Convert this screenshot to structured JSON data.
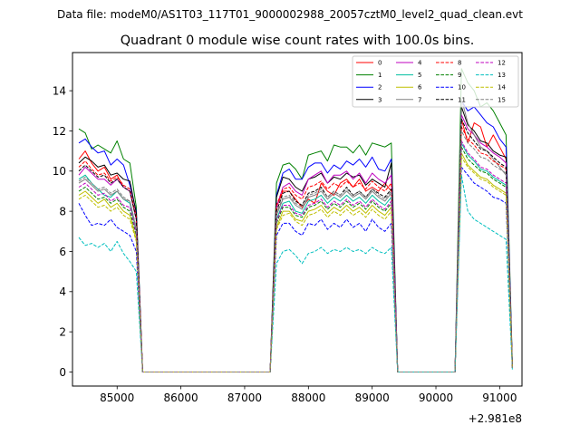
{
  "suptitle": "Data file: modeM0/AS1T03_117T01_9000002988_20057cztM0_level2_quad_clean.evt",
  "chart_data": {
    "type": "line",
    "title": "Quadrant 0 module wise count rates with 100.0s bins.",
    "xlabel": "",
    "ylabel": "",
    "x_offset_label": "+2.981e8",
    "xlim": [
      84300,
      91350
    ],
    "ylim": [
      -0.7,
      15.9
    ],
    "xticks": [
      85000,
      86000,
      87000,
      88000,
      89000,
      90000,
      91000
    ],
    "xtick_labels": [
      "85000",
      "86000",
      "87000",
      "88000",
      "89000",
      "90000",
      "91000"
    ],
    "yticks": [
      0,
      2,
      4,
      6,
      8,
      10,
      12,
      14
    ],
    "ytick_labels": [
      "0",
      "2",
      "4",
      "6",
      "8",
      "10",
      "12",
      "14"
    ],
    "legend_position": "top-right",
    "legend_columns": 4,
    "x": [
      84400,
      84500,
      84600,
      84700,
      84800,
      84900,
      85000,
      85100,
      85200,
      85300,
      85400,
      85500,
      85600,
      85700,
      85800,
      85900,
      86000,
      86100,
      86200,
      86300,
      86400,
      86500,
      86600,
      86700,
      86800,
      86900,
      87000,
      87100,
      87200,
      87300,
      87400,
      87500,
      87600,
      87700,
      87800,
      87900,
      88000,
      88100,
      88200,
      88300,
      88400,
      88500,
      88600,
      88700,
      88800,
      88900,
      89000,
      89100,
      89200,
      89300,
      89400,
      89500,
      89600,
      89700,
      89800,
      89900,
      90000,
      90100,
      90200,
      90300,
      90400,
      90500,
      90600,
      90700,
      90800,
      90900,
      91000,
      91100,
      91200
    ],
    "series": [
      {
        "name": "0",
        "color": "#ff0000",
        "dash": "solid",
        "values": [
          10.6,
          11.0,
          10.4,
          10.0,
          10.2,
          9.6,
          9.8,
          9.2,
          9.0,
          7.6,
          0,
          0,
          0,
          0,
          0,
          0,
          0,
          0,
          0,
          0,
          0,
          0,
          0,
          0,
          0,
          0,
          0,
          0,
          0,
          0,
          0,
          8.2,
          9.0,
          9.0,
          8.6,
          8.2,
          8.6,
          8.4,
          9.4,
          9.0,
          8.8,
          9.4,
          9.6,
          9.2,
          9.6,
          9.0,
          9.2,
          9.0,
          9.4,
          9.0,
          0,
          0,
          0,
          0,
          0,
          0,
          0,
          0,
          0,
          0,
          12.6,
          11.4,
          12.4,
          12.2,
          11.2,
          11.8,
          11.2,
          10.6,
          0.2
        ]
      },
      {
        "name": "1",
        "color": "#008000",
        "dash": "solid",
        "values": [
          12.1,
          11.9,
          11.1,
          11.3,
          11.1,
          10.9,
          11.5,
          10.6,
          10.4,
          8.2,
          0,
          0,
          0,
          0,
          0,
          0,
          0,
          0,
          0,
          0,
          0,
          0,
          0,
          0,
          0,
          0,
          0,
          0,
          0,
          0,
          0,
          9.4,
          10.3,
          10.4,
          10.1,
          9.6,
          10.8,
          10.9,
          11.0,
          10.5,
          11.3,
          11.2,
          11.2,
          10.9,
          11.3,
          10.8,
          11.4,
          11.3,
          11.2,
          11.4,
          0,
          0,
          0,
          0,
          0,
          0,
          0,
          0,
          0,
          0,
          15.1,
          14.4,
          14.0,
          13.2,
          13.4,
          13.0,
          12.4,
          11.8,
          0.4
        ]
      },
      {
        "name": "2",
        "color": "#0000ff",
        "dash": "solid",
        "values": [
          11.4,
          11.6,
          11.2,
          10.9,
          11.0,
          10.3,
          10.6,
          10.3,
          9.3,
          8.0,
          0,
          0,
          0,
          0,
          0,
          0,
          0,
          0,
          0,
          0,
          0,
          0,
          0,
          0,
          0,
          0,
          0,
          0,
          0,
          0,
          0,
          8.8,
          9.9,
          10.1,
          9.6,
          9.6,
          10.2,
          10.4,
          10.4,
          9.9,
          10.3,
          10.1,
          10.5,
          10.3,
          10.6,
          10.2,
          10.7,
          10.1,
          10.0,
          10.6,
          0,
          0,
          0,
          0,
          0,
          0,
          0,
          0,
          0,
          0,
          13.5,
          13.0,
          13.2,
          12.8,
          12.4,
          12.2,
          11.6,
          11.2,
          0.3
        ]
      },
      {
        "name": "3",
        "color": "#000000",
        "dash": "solid",
        "values": [
          10.4,
          10.7,
          10.5,
          10.2,
          10.3,
          9.8,
          9.9,
          9.6,
          9.5,
          7.9,
          0,
          0,
          0,
          0,
          0,
          0,
          0,
          0,
          0,
          0,
          0,
          0,
          0,
          0,
          0,
          0,
          0,
          0,
          0,
          0,
          0,
          8.7,
          9.7,
          9.6,
          9.2,
          9.0,
          9.6,
          9.7,
          9.9,
          9.4,
          9.7,
          9.6,
          9.9,
          9.7,
          9.8,
          9.3,
          9.6,
          9.4,
          9.2,
          10.4,
          0,
          0,
          0,
          0,
          0,
          0,
          0,
          0,
          0,
          0,
          13.2,
          12.3,
          12.0,
          11.5,
          11.4,
          11.0,
          10.8,
          10.7,
          0.2
        ]
      },
      {
        "name": "4",
        "color": "#bf00bf",
        "dash": "solid",
        "values": [
          9.8,
          10.2,
          9.9,
          9.6,
          9.6,
          9.3,
          9.6,
          9.2,
          9.0,
          7.6,
          0,
          0,
          0,
          0,
          0,
          0,
          0,
          0,
          0,
          0,
          0,
          0,
          0,
          0,
          0,
          0,
          0,
          0,
          0,
          0,
          0,
          8.2,
          9.2,
          9.4,
          9.0,
          8.8,
          9.6,
          9.8,
          10.0,
          9.4,
          9.8,
          9.8,
          10.0,
          9.6,
          9.9,
          9.4,
          9.9,
          9.6,
          9.4,
          9.8,
          0,
          0,
          0,
          0,
          0,
          0,
          0,
          0,
          0,
          0,
          12.8,
          12.1,
          11.8,
          11.4,
          11.2,
          10.9,
          10.7,
          10.4,
          0.2
        ]
      },
      {
        "name": "5",
        "color": "#00bfa0",
        "dash": "solid",
        "values": [
          9.6,
          9.8,
          9.4,
          9.1,
          8.8,
          8.7,
          9.0,
          8.6,
          8.4,
          7.0,
          0,
          0,
          0,
          0,
          0,
          0,
          0,
          0,
          0,
          0,
          0,
          0,
          0,
          0,
          0,
          0,
          0,
          0,
          0,
          0,
          0,
          7.6,
          8.4,
          8.5,
          8.0,
          7.9,
          8.5,
          8.6,
          8.8,
          8.4,
          8.7,
          8.5,
          8.8,
          8.5,
          8.7,
          8.4,
          8.8,
          8.5,
          8.3,
          8.7,
          0,
          0,
          0,
          0,
          0,
          0,
          0,
          0,
          0,
          0,
          11.4,
          10.8,
          10.5,
          10.1,
          10.0,
          9.7,
          9.5,
          9.3,
          0.2
        ]
      },
      {
        "name": "6",
        "color": "#bfbf00",
        "dash": "solid",
        "values": [
          8.8,
          9.0,
          8.7,
          8.4,
          8.6,
          8.2,
          8.4,
          8.0,
          7.8,
          6.6,
          0,
          0,
          0,
          0,
          0,
          0,
          0,
          0,
          0,
          0,
          0,
          0,
          0,
          0,
          0,
          0,
          0,
          0,
          0,
          0,
          0,
          7.2,
          8.0,
          8.0,
          7.6,
          7.5,
          8.0,
          8.1,
          8.3,
          7.9,
          8.2,
          8.0,
          8.3,
          8.0,
          8.2,
          7.9,
          8.3,
          8.0,
          7.8,
          8.2,
          0,
          0,
          0,
          0,
          0,
          0,
          0,
          0,
          0,
          0,
          10.9,
          10.3,
          10.0,
          9.7,
          9.6,
          9.3,
          9.1,
          8.9,
          0.2
        ]
      },
      {
        "name": "7",
        "color": "#808080",
        "dash": "solid",
        "values": [
          9.4,
          9.6,
          9.3,
          9.0,
          9.1,
          8.8,
          9.0,
          8.6,
          8.5,
          7.1,
          0,
          0,
          0,
          0,
          0,
          0,
          0,
          0,
          0,
          0,
          0,
          0,
          0,
          0,
          0,
          0,
          0,
          0,
          0,
          0,
          0,
          7.8,
          8.6,
          8.7,
          8.3,
          8.1,
          8.7,
          8.8,
          9.0,
          8.6,
          8.9,
          8.7,
          9.0,
          8.7,
          8.9,
          8.6,
          9.0,
          8.7,
          8.5,
          8.9,
          0,
          0,
          0,
          0,
          0,
          0,
          0,
          0,
          0,
          0,
          13.6,
          12.4,
          11.8,
          11.2,
          11.0,
          10.6,
          10.2,
          9.8,
          0.2
        ]
      },
      {
        "name": "8",
        "color": "#ff0000",
        "dash": "dashed",
        "values": [
          10.2,
          10.5,
          10.1,
          9.8,
          9.9,
          9.5,
          9.7,
          9.3,
          9.1,
          7.7,
          0,
          0,
          0,
          0,
          0,
          0,
          0,
          0,
          0,
          0,
          0,
          0,
          0,
          0,
          0,
          0,
          0,
          0,
          0,
          0,
          0,
          8.3,
          9.1,
          9.2,
          8.8,
          8.6,
          9.2,
          9.3,
          9.5,
          9.1,
          9.4,
          9.2,
          9.5,
          9.2,
          9.4,
          9.1,
          9.5,
          9.2,
          9.0,
          9.4,
          0,
          0,
          0,
          0,
          0,
          0,
          0,
          0,
          0,
          0,
          12.2,
          11.6,
          11.3,
          10.9,
          10.8,
          10.5,
          10.3,
          10.1,
          0.2
        ]
      },
      {
        "name": "9",
        "color": "#008000",
        "dash": "dashed",
        "values": [
          9.0,
          9.2,
          8.9,
          8.6,
          8.7,
          8.4,
          8.6,
          8.2,
          8.0,
          6.8,
          0,
          0,
          0,
          0,
          0,
          0,
          0,
          0,
          0,
          0,
          0,
          0,
          0,
          0,
          0,
          0,
          0,
          0,
          0,
          0,
          0,
          7.4,
          8.2,
          8.2,
          7.8,
          7.7,
          8.2,
          8.3,
          8.5,
          8.1,
          8.4,
          8.2,
          8.5,
          8.2,
          8.4,
          8.1,
          8.5,
          8.2,
          8.0,
          8.4,
          0,
          0,
          0,
          0,
          0,
          0,
          0,
          0,
          0,
          0,
          11.2,
          10.6,
          10.3,
          10.0,
          9.9,
          9.6,
          9.4,
          9.2,
          0.2
        ]
      },
      {
        "name": "10",
        "color": "#0000ff",
        "dash": "dashed",
        "values": [
          8.4,
          7.8,
          7.3,
          7.4,
          7.3,
          7.6,
          7.2,
          7.0,
          6.8,
          6.0,
          0,
          0,
          0,
          0,
          0,
          0,
          0,
          0,
          0,
          0,
          0,
          0,
          0,
          0,
          0,
          0,
          0,
          0,
          0,
          0,
          0,
          6.8,
          7.4,
          7.4,
          7.0,
          6.8,
          7.4,
          7.3,
          7.6,
          7.1,
          7.4,
          7.2,
          7.6,
          7.2,
          7.4,
          7.0,
          7.6,
          7.2,
          7.0,
          7.4,
          0,
          0,
          0,
          0,
          0,
          0,
          0,
          0,
          0,
          0,
          10.2,
          9.8,
          9.4,
          9.2,
          9.0,
          8.7,
          8.6,
          8.4,
          0.2
        ]
      },
      {
        "name": "11",
        "color": "#000000",
        "dash": "dashed",
        "values": [
          10.0,
          10.3,
          10.0,
          9.7,
          9.8,
          9.4,
          9.6,
          9.2,
          9.0,
          7.6,
          0,
          0,
          0,
          0,
          0,
          0,
          0,
          0,
          0,
          0,
          0,
          0,
          0,
          0,
          0,
          0,
          0,
          0,
          0,
          0,
          0,
          8.0,
          8.9,
          9.0,
          8.5,
          8.3,
          8.9,
          9.0,
          9.2,
          8.7,
          9.0,
          8.8,
          9.2,
          8.8,
          9.0,
          8.7,
          9.1,
          8.9,
          8.7,
          9.1,
          0,
          0,
          0,
          0,
          0,
          0,
          0,
          0,
          0,
          0,
          12.6,
          11.9,
          11.5,
          11.1,
          11.0,
          10.7,
          10.4,
          10.2,
          0.2
        ]
      },
      {
        "name": "12",
        "color": "#bf00bf",
        "dash": "dashed",
        "values": [
          9.2,
          9.4,
          9.1,
          8.8,
          8.9,
          8.5,
          8.7,
          8.3,
          8.2,
          6.9,
          0,
          0,
          0,
          0,
          0,
          0,
          0,
          0,
          0,
          0,
          0,
          0,
          0,
          0,
          0,
          0,
          0,
          0,
          0,
          0,
          0,
          7.5,
          8.3,
          8.3,
          7.9,
          7.8,
          8.3,
          8.4,
          8.6,
          8.2,
          8.5,
          8.3,
          8.6,
          8.3,
          8.5,
          8.2,
          8.6,
          8.3,
          8.1,
          8.5,
          0,
          0,
          0,
          0,
          0,
          0,
          0,
          0,
          0,
          0,
          11.5,
          10.9,
          10.6,
          10.2,
          10.1,
          9.8,
          9.6,
          9.4,
          0.2
        ]
      },
      {
        "name": "13",
        "color": "#00bfbf",
        "dash": "dashed",
        "values": [
          6.7,
          6.3,
          6.4,
          6.2,
          6.4,
          6.0,
          6.5,
          5.9,
          5.5,
          5.0,
          0,
          0,
          0,
          0,
          0,
          0,
          0,
          0,
          0,
          0,
          0,
          0,
          0,
          0,
          0,
          0,
          0,
          0,
          0,
          0,
          0,
          5.4,
          6.0,
          6.1,
          5.8,
          5.4,
          5.9,
          6.0,
          6.2,
          5.9,
          6.1,
          6.0,
          6.2,
          6.0,
          6.1,
          5.9,
          6.2,
          6.0,
          5.9,
          6.2,
          0,
          0,
          0,
          0,
          0,
          0,
          0,
          0,
          0,
          0,
          9.8,
          8.0,
          7.6,
          7.4,
          7.2,
          7.0,
          6.8,
          6.6,
          0.1
        ]
      },
      {
        "name": "14",
        "color": "#bfbf00",
        "dash": "dashed",
        "values": [
          8.6,
          8.8,
          8.5,
          8.2,
          8.3,
          8.0,
          8.2,
          7.8,
          7.6,
          6.5,
          0,
          0,
          0,
          0,
          0,
          0,
          0,
          0,
          0,
          0,
          0,
          0,
          0,
          0,
          0,
          0,
          0,
          0,
          0,
          0,
          0,
          7.1,
          7.8,
          7.9,
          7.5,
          7.3,
          7.8,
          7.9,
          8.1,
          7.7,
          8.0,
          7.8,
          8.1,
          7.8,
          8.0,
          7.7,
          8.1,
          7.8,
          7.6,
          8.0,
          0,
          0,
          0,
          0,
          0,
          0,
          0,
          0,
          0,
          0,
          10.7,
          10.2,
          9.9,
          9.6,
          9.5,
          9.2,
          9.0,
          8.8,
          0.2
        ]
      },
      {
        "name": "15",
        "color": "#808080",
        "dash": "dashed",
        "values": [
          9.5,
          9.7,
          9.4,
          9.1,
          9.2,
          8.9,
          9.1,
          8.7,
          8.5,
          7.2,
          0,
          0,
          0,
          0,
          0,
          0,
          0,
          0,
          0,
          0,
          0,
          0,
          0,
          0,
          0,
          0,
          0,
          0,
          0,
          0,
          0,
          7.9,
          8.7,
          8.8,
          8.4,
          8.2,
          8.8,
          8.9,
          9.1,
          8.7,
          9.0,
          8.8,
          9.1,
          8.8,
          9.0,
          8.7,
          9.1,
          8.8,
          8.6,
          9.0,
          0,
          0,
          0,
          0,
          0,
          0,
          0,
          0,
          0,
          0,
          12.0,
          11.4,
          11.1,
          10.7,
          10.6,
          10.3,
          10.1,
          9.9,
          0.2
        ]
      }
    ]
  }
}
